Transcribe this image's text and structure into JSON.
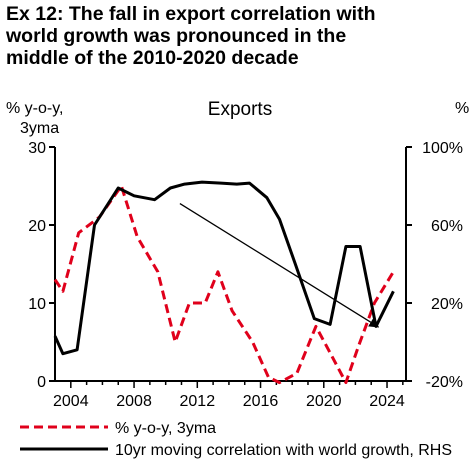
{
  "title_lines": [
    "Ex 12: The fall in export correlation with",
    "world growth was pronounced in the",
    "middle of the 2010-2020 decade"
  ],
  "chart_data": {
    "type": "line",
    "title": "Exports",
    "ylabel_left": [
      "% y-o-y,",
      "3yma"
    ],
    "ylabel_right": "%",
    "ylim_left": [
      0,
      30
    ],
    "ylim_right": [
      -20,
      100
    ],
    "left_ticks": [
      0,
      10,
      20,
      30
    ],
    "right_ticks": [
      -20,
      20,
      60,
      100
    ],
    "right_tick_labels": [
      "-20%",
      "20%",
      "60%",
      "100%"
    ],
    "x_ticks": [
      2004,
      2008,
      2012,
      2016,
      2020,
      2024
    ],
    "xlim": [
      2003.0,
      2025.2
    ],
    "grid": false,
    "legend_position": "bottom",
    "series": [
      {
        "name": "% y-o-y, 3yma",
        "axis": "left",
        "color": "#e0001b",
        "style": "dashed",
        "x": [
          2003.0,
          2003.5,
          2004.5,
          2005.8,
          2007.2,
          2008.2,
          2009.5,
          2010.6,
          2011.5,
          2012.5,
          2013.3,
          2014.2,
          2015.5,
          2016.5,
          2017.2,
          2018.3,
          2019.5,
          2020.3,
          2021.4,
          2022.2,
          2023.2,
          2024.4
        ],
        "values": [
          13,
          11.5,
          19,
          21,
          25,
          18.5,
          14,
          5,
          10,
          10,
          14,
          9,
          5,
          0.5,
          -0.2,
          1,
          7,
          4,
          -0.2,
          4.5,
          10,
          14
        ]
      },
      {
        "name": "10yr moving correlation with world growth, RHS",
        "axis": "right",
        "color": "#000000",
        "style": "solid",
        "x": [
          2003.0,
          2003.5,
          2004.4,
          2005.5,
          2007.0,
          2008.0,
          2009.3,
          2010.3,
          2011.2,
          2012.3,
          2013.5,
          2014.5,
          2015.3,
          2016.4,
          2017.2,
          2018.2,
          2019.4,
          2020.4,
          2021.4,
          2022.3,
          2023.3,
          2024.4
        ],
        "values": [
          3,
          -6,
          -4,
          60,
          79,
          75,
          73,
          79,
          81,
          82,
          81.5,
          81,
          81.5,
          74,
          63,
          40,
          12,
          9,
          49,
          49,
          8,
          26
        ]
      }
    ],
    "annotations": [
      {
        "type": "arrow",
        "from": [
          2010.9,
          71
        ],
        "to": [
          2023.4,
          8
        ],
        "axis": "right"
      }
    ]
  }
}
